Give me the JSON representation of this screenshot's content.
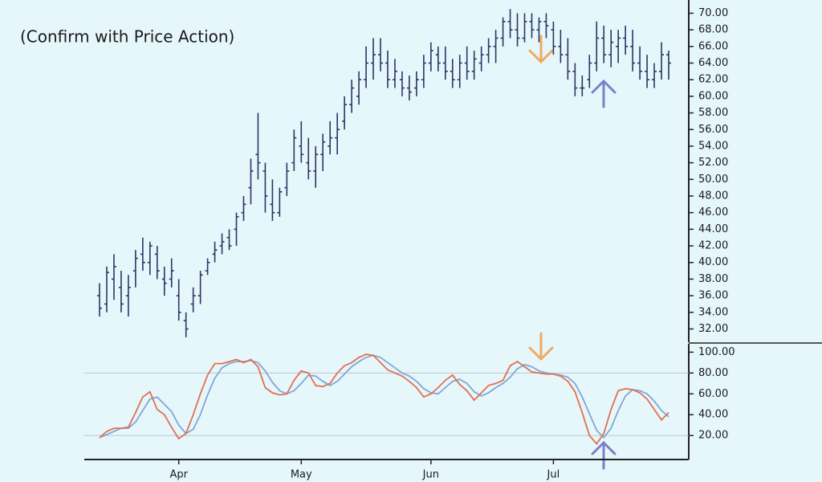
{
  "chart_data": [
    {
      "type": "ohlc",
      "annotation": "(Confirm with Price Action)",
      "color": "#2b3566",
      "categories": [
        null,
        null,
        null,
        null,
        null,
        null,
        null,
        null,
        null,
        null,
        null,
        "Apr",
        null,
        null,
        null,
        null,
        null,
        null,
        null,
        null,
        null,
        null,
        null,
        null,
        null,
        null,
        null,
        null,
        "May",
        null,
        null,
        null,
        null,
        null,
        null,
        null,
        null,
        null,
        null,
        null,
        null,
        null,
        null,
        null,
        null,
        null,
        "Jun",
        null,
        null,
        null,
        null,
        null,
        null,
        null,
        null,
        null,
        null,
        null,
        null,
        null,
        null,
        null,
        null,
        "Jul",
        null,
        null,
        null,
        null,
        null,
        null,
        null,
        null,
        null,
        null,
        null,
        null,
        null,
        null,
        null,
        null
      ],
      "ohlc": [
        [
          36,
          37.5,
          33.5,
          34.5
        ],
        [
          35,
          39.5,
          34,
          38.8
        ],
        [
          38,
          41,
          35.5,
          39.5
        ],
        [
          37,
          39,
          34,
          35
        ],
        [
          36,
          38.5,
          33.5,
          37
        ],
        [
          39,
          41.5,
          37,
          40.5
        ],
        [
          41,
          43,
          39,
          40
        ],
        [
          40,
          42.5,
          38.5,
          42
        ],
        [
          41,
          42,
          38,
          39
        ],
        [
          38,
          39.5,
          36,
          37.5
        ],
        [
          38,
          40.5,
          37,
          39
        ],
        [
          36,
          38,
          33,
          34
        ],
        [
          33,
          34,
          31,
          32
        ],
        [
          35,
          37,
          34,
          36
        ],
        [
          36,
          39,
          35,
          38.5
        ],
        [
          39,
          40.5,
          38.5,
          40
        ],
        [
          41,
          42.5,
          40,
          41.5
        ],
        [
          42,
          43.5,
          41,
          42.5
        ],
        [
          43,
          44,
          41.5,
          42
        ],
        [
          44,
          46,
          42,
          45.5
        ],
        [
          46,
          48,
          45,
          47
        ],
        [
          49,
          52.5,
          47,
          51
        ],
        [
          53,
          58,
          50,
          52
        ],
        [
          51,
          52,
          46,
          48
        ],
        [
          47,
          50,
          45,
          46
        ],
        [
          46,
          49,
          45.5,
          48.5
        ],
        [
          49,
          52,
          48,
          51
        ],
        [
          52,
          56,
          51,
          55
        ],
        [
          54,
          57,
          52,
          53
        ],
        [
          52,
          55,
          50,
          51
        ],
        [
          51,
          54,
          49,
          53
        ],
        [
          53,
          55.5,
          51,
          54.5
        ],
        [
          54,
          57,
          53,
          55
        ],
        [
          55,
          58,
          53,
          56
        ],
        [
          57,
          60,
          56,
          59
        ],
        [
          59,
          62,
          58,
          61
        ],
        [
          60,
          63,
          59,
          62
        ],
        [
          62,
          66,
          61,
          64
        ],
        [
          64,
          67,
          62,
          65
        ],
        [
          65,
          67,
          63,
          64
        ],
        [
          64,
          65.5,
          61,
          62
        ],
        [
          62,
          64.5,
          61,
          63
        ],
        [
          62,
          63,
          60,
          61
        ],
        [
          61,
          62.5,
          59.5,
          60.5
        ],
        [
          61,
          63,
          60,
          62
        ],
        [
          62,
          65,
          61,
          64
        ],
        [
          64,
          66.5,
          63,
          65.5
        ],
        [
          65,
          66,
          63,
          64
        ],
        [
          64,
          66,
          62,
          63
        ],
        [
          63,
          64.5,
          61,
          62
        ],
        [
          62,
          65,
          61,
          64
        ],
        [
          64,
          66,
          62,
          63
        ],
        [
          63,
          65.5,
          62,
          64.5
        ],
        [
          64,
          66,
          63,
          65
        ],
        [
          65,
          67,
          64,
          66
        ],
        [
          66,
          68,
          64,
          67
        ],
        [
          67,
          69.5,
          66,
          69
        ],
        [
          69,
          70.5,
          67,
          68
        ],
        [
          68,
          70,
          66,
          67
        ],
        [
          67,
          70,
          66.5,
          69
        ],
        [
          69,
          70,
          67,
          68
        ],
        [
          68,
          69.5,
          66.5,
          69
        ],
        [
          69,
          70,
          67,
          68.5
        ],
        [
          68,
          69,
          65,
          66
        ],
        [
          66,
          68,
          64,
          65
        ],
        [
          65,
          67,
          62,
          63
        ],
        [
          63,
          64,
          60,
          61
        ],
        [
          61,
          62.5,
          60,
          61
        ],
        [
          62,
          65,
          61,
          64
        ],
        [
          64,
          69,
          63,
          67
        ],
        [
          67,
          68.5,
          64,
          65
        ],
        [
          65,
          68,
          63.5,
          66.5
        ],
        [
          66,
          68,
          64,
          67
        ],
        [
          67,
          68.5,
          65,
          66
        ],
        [
          66,
          68,
          63,
          64
        ],
        [
          64,
          66,
          62,
          63
        ],
        [
          63,
          65,
          61,
          62
        ],
        [
          62,
          64,
          61,
          63
        ],
        [
          63,
          66.5,
          62,
          65
        ],
        [
          65,
          65.5,
          62,
          64
        ]
      ],
      "ylim": [
        30.5,
        71.3
      ],
      "yticks": [
        {
          "value": 32,
          "label": "32.00"
        },
        {
          "value": 34,
          "label": "34.00"
        },
        {
          "value": 36,
          "label": "36.00"
        },
        {
          "value": 38,
          "label": "38.00"
        },
        {
          "value": 40,
          "label": "40.00"
        },
        {
          "value": 42,
          "label": "42.00"
        },
        {
          "value": 44,
          "label": "44.00"
        },
        {
          "value": 46,
          "label": "46.00"
        },
        {
          "value": 48,
          "label": "48.00"
        },
        {
          "value": 50,
          "label": "50.00"
        },
        {
          "value": 52,
          "label": "52.00"
        },
        {
          "value": 54,
          "label": "54.00"
        },
        {
          "value": 56,
          "label": "56.00"
        },
        {
          "value": 58,
          "label": "58.00"
        },
        {
          "value": 60,
          "label": "60.00"
        },
        {
          "value": 62,
          "label": "62.00"
        },
        {
          "value": 64,
          "label": "64.00"
        },
        {
          "value": 66,
          "label": "66.00"
        },
        {
          "value": 68,
          "label": "68.00"
        },
        {
          "value": 70,
          "label": "70.00"
        }
      ]
    },
    {
      "type": "line",
      "levels": [
        20,
        80
      ],
      "series": [
        {
          "color": "#e07050",
          "values": [
            18,
            24,
            27,
            27,
            28,
            42,
            57,
            62,
            45,
            40,
            28,
            17,
            22,
            40,
            60,
            78,
            89,
            89,
            91,
            93,
            90,
            93,
            86,
            66,
            61,
            59,
            60,
            73,
            82,
            80,
            68,
            67,
            70,
            80,
            87,
            90,
            95,
            98,
            97,
            90,
            83,
            80,
            77,
            72,
            66,
            57,
            60,
            66,
            73,
            78,
            69,
            63,
            54,
            61,
            68,
            70,
            73,
            87,
            91,
            86,
            81,
            80,
            79,
            79,
            77,
            72,
            62,
            42,
            20,
            12,
            22,
            45,
            63,
            65,
            64,
            61,
            55,
            45,
            35,
            42
          ]
        },
        {
          "color": "#7fa7d6",
          "values": [
            18,
            21,
            24,
            27,
            27,
            33,
            44,
            55,
            57,
            50,
            43,
            30,
            22,
            26,
            40,
            59,
            75,
            85,
            89,
            91,
            91,
            92,
            90,
            82,
            71,
            63,
            60,
            63,
            70,
            78,
            77,
            72,
            68,
            72,
            79,
            86,
            91,
            95,
            97,
            95,
            90,
            85,
            80,
            77,
            72,
            65,
            61,
            60,
            66,
            72,
            74,
            70,
            62,
            58,
            61,
            66,
            70,
            76,
            84,
            88,
            86,
            82,
            80,
            79,
            78,
            76,
            70,
            57,
            41,
            25,
            18,
            27,
            44,
            58,
            64,
            63,
            60,
            53,
            44,
            38
          ]
        }
      ],
      "ylim": [
        -3,
        108
      ],
      "yticks": [
        {
          "value": 20,
          "label": "20.00"
        },
        {
          "value": 40,
          "label": "40.00"
        },
        {
          "value": 60,
          "label": "60.00"
        },
        {
          "value": 80,
          "label": "80.00"
        },
        {
          "value": 100,
          "label": "100.00"
        }
      ]
    }
  ]
}
